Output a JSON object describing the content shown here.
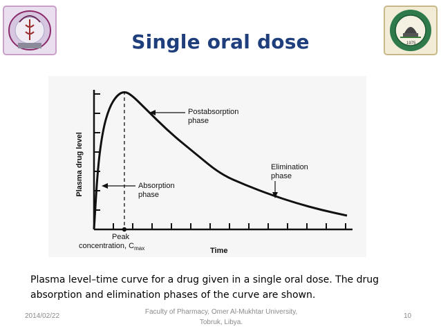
{
  "slide": {
    "title": "Single oral dose",
    "caption": "Plasma level–time curve for a drug given in a single oral dose. The drug absorption and elimination phases of the curve are shown.",
    "footer": {
      "date": "2014/02/22",
      "center_line1": "Faculty of Pharmacy, Omer Al-Mukhtar University,",
      "center_line2": "Tobruk, Libya.",
      "page": "10"
    },
    "logos": {
      "left": "faculty-emblem",
      "right": "university-seal",
      "right_year": "1975"
    }
  },
  "chart_data": {
    "type": "line",
    "ylabel": "Plasma drug level",
    "xlabel": "Time",
    "grid": false,
    "series": [
      {
        "x": [
          0,
          0.15,
          0.35,
          0.6,
          0.9,
          1.2,
          1.5,
          2,
          3,
          4,
          5,
          6,
          7,
          8,
          9,
          10
        ],
        "y": [
          0,
          0.45,
          0.72,
          0.88,
          0.97,
          1.0,
          0.97,
          0.88,
          0.7,
          0.55,
          0.4,
          0.32,
          0.25,
          0.19,
          0.14,
          0.1
        ]
      }
    ],
    "annotations": {
      "postabsorption": [
        "Postabsorption",
        "phase"
      ],
      "elimination": [
        "Elimination",
        "phase"
      ],
      "absorption": [
        "Absorption",
        "phase"
      ],
      "peak": [
        "Peak",
        "concentration, C",
        "max"
      ]
    }
  }
}
